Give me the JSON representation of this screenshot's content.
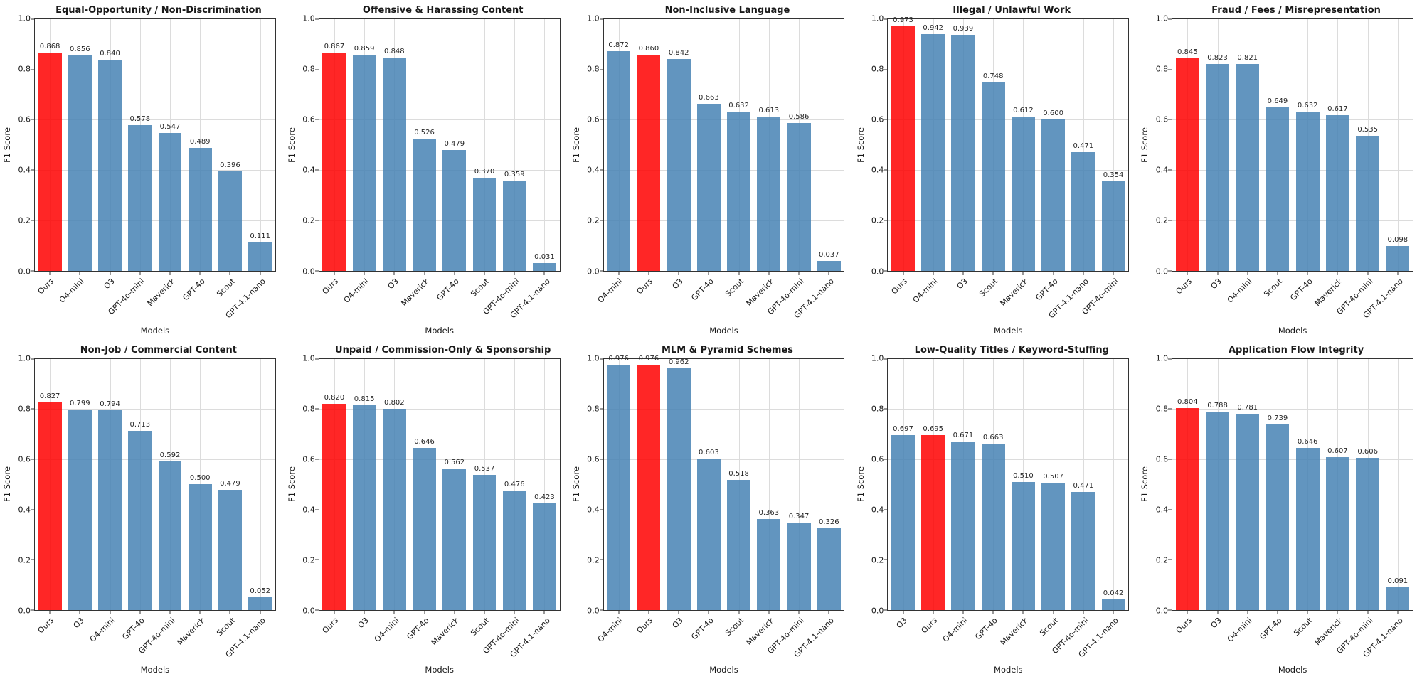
{
  "highlight_model": "Ours",
  "colors": {
    "bar_blue": "rgba(70,130,180,0.85)",
    "bar_highlight_red": "rgba(255,0,0,0.85)",
    "grid": "#dcdcdc",
    "axis": "#333333"
  },
  "chart_data": [
    {
      "type": "bar",
      "title": "Equal-Opportunity / Non-Discrimination",
      "xlabel": "Models",
      "ylabel": "F1 Score",
      "ylim": [
        0.0,
        1.0
      ],
      "yticks": [
        "0.0",
        "0.2",
        "0.4",
        "0.6",
        "0.8",
        "1.0"
      ],
      "grid": true,
      "categories": [
        "Ours",
        "O4-mini",
        "O3",
        "GPT-4o-mini",
        "Maverick",
        "GPT-4o",
        "Scout",
        "GPT-4.1-nano"
      ],
      "values": [
        0.868,
        0.856,
        0.84,
        0.578,
        0.547,
        0.489,
        0.396,
        0.111
      ]
    },
    {
      "type": "bar",
      "title": "Offensive & Harassing Content",
      "xlabel": "Models",
      "ylabel": "F1 Score",
      "ylim": [
        0.0,
        1.0
      ],
      "yticks": [
        "0.0",
        "0.2",
        "0.4",
        "0.6",
        "0.8",
        "1.0"
      ],
      "grid": true,
      "categories": [
        "Ours",
        "O4-mini",
        "O3",
        "Maverick",
        "GPT-4o",
        "Scout",
        "GPT-4o-mini",
        "GPT-4.1-nano"
      ],
      "values": [
        0.867,
        0.859,
        0.848,
        0.526,
        0.479,
        0.37,
        0.359,
        0.031
      ]
    },
    {
      "type": "bar",
      "title": "Non-Inclusive Language",
      "xlabel": "Models",
      "ylabel": "F1 Score",
      "ylim": [
        0.0,
        1.0
      ],
      "yticks": [
        "0.0",
        "0.2",
        "0.4",
        "0.6",
        "0.8",
        "1.0"
      ],
      "grid": true,
      "categories": [
        "O4-mini",
        "Ours",
        "O3",
        "GPT-4o",
        "Scout",
        "Maverick",
        "GPT-4o-mini",
        "GPT-4.1-nano"
      ],
      "values": [
        0.872,
        0.86,
        0.842,
        0.663,
        0.632,
        0.613,
        0.586,
        0.037
      ]
    },
    {
      "type": "bar",
      "title": "Illegal / Unlawful Work",
      "xlabel": "Models",
      "ylabel": "F1 Score",
      "ylim": [
        0.0,
        1.0
      ],
      "yticks": [
        "0.0",
        "0.2",
        "0.4",
        "0.6",
        "0.8",
        "1.0"
      ],
      "grid": true,
      "categories": [
        "Ours",
        "O4-mini",
        "O3",
        "Scout",
        "Maverick",
        "GPT-4o",
        "GPT-4.1-nano",
        "GPT-4o-mini"
      ],
      "values": [
        0.973,
        0.942,
        0.939,
        0.748,
        0.612,
        0.6,
        0.471,
        0.354
      ]
    },
    {
      "type": "bar",
      "title": "Fraud / Fees / Misrepresentation",
      "xlabel": "Models",
      "ylabel": "F1 Score",
      "ylim": [
        0.0,
        1.0
      ],
      "yticks": [
        "0.0",
        "0.2",
        "0.4",
        "0.6",
        "0.8",
        "1.0"
      ],
      "grid": true,
      "categories": [
        "Ours",
        "O3",
        "O4-mini",
        "Scout",
        "GPT-4o",
        "Maverick",
        "GPT-4o-mini",
        "GPT-4.1-nano"
      ],
      "values": [
        0.845,
        0.823,
        0.821,
        0.649,
        0.632,
        0.617,
        0.535,
        0.098
      ]
    },
    {
      "type": "bar",
      "title": "Non-Job / Commercial Content",
      "xlabel": "Models",
      "ylabel": "F1 Score",
      "ylim": [
        0.0,
        1.0
      ],
      "yticks": [
        "0.0",
        "0.2",
        "0.4",
        "0.6",
        "0.8",
        "1.0"
      ],
      "grid": true,
      "categories": [
        "Ours",
        "O3",
        "O4-mini",
        "GPT-4o",
        "GPT-4o-mini",
        "Maverick",
        "Scout",
        "GPT-4.1-nano"
      ],
      "values": [
        0.827,
        0.799,
        0.794,
        0.713,
        0.592,
        0.5,
        0.479,
        0.052
      ]
    },
    {
      "type": "bar",
      "title": "Unpaid / Commission-Only & Sponsorship",
      "xlabel": "Models",
      "ylabel": "F1 Score",
      "ylim": [
        0.0,
        1.0
      ],
      "yticks": [
        "0.0",
        "0.2",
        "0.4",
        "0.6",
        "0.8",
        "1.0"
      ],
      "grid": true,
      "categories": [
        "Ours",
        "O3",
        "O4-mini",
        "GPT-4o",
        "Maverick",
        "Scout",
        "GPT-4o-mini",
        "GPT-4.1-nano"
      ],
      "values": [
        0.82,
        0.815,
        0.802,
        0.646,
        0.562,
        0.537,
        0.476,
        0.423
      ]
    },
    {
      "type": "bar",
      "title": "MLM & Pyramid Schemes",
      "xlabel": "Models",
      "ylabel": "F1 Score",
      "ylim": [
        0.0,
        1.0
      ],
      "yticks": [
        "0.0",
        "0.2",
        "0.4",
        "0.6",
        "0.8",
        "1.0"
      ],
      "grid": true,
      "categories": [
        "O4-mini",
        "Ours",
        "O3",
        "GPT-4o",
        "Scout",
        "Maverick",
        "GPT-4o-mini",
        "GPT-4.1-nano"
      ],
      "values": [
        0.976,
        0.976,
        0.962,
        0.603,
        0.518,
        0.363,
        0.347,
        0.326
      ]
    },
    {
      "type": "bar",
      "title": "Low-Quality Titles / Keyword-Stuffing",
      "xlabel": "Models",
      "ylabel": "F1 Score",
      "ylim": [
        0.0,
        1.0
      ],
      "yticks": [
        "0.0",
        "0.2",
        "0.4",
        "0.6",
        "0.8",
        "1.0"
      ],
      "grid": true,
      "categories": [
        "O3",
        "Ours",
        "O4-mini",
        "GPT-4o",
        "Maverick",
        "Scout",
        "GPT-4o-mini",
        "GPT-4.1-nano"
      ],
      "values": [
        0.697,
        0.695,
        0.671,
        0.663,
        0.51,
        0.507,
        0.471,
        0.042
      ]
    },
    {
      "type": "bar",
      "title": "Application Flow Integrity",
      "xlabel": "Models",
      "ylabel": "F1 Score",
      "ylim": [
        0.0,
        1.0
      ],
      "yticks": [
        "0.0",
        "0.2",
        "0.4",
        "0.6",
        "0.8",
        "1.0"
      ],
      "grid": true,
      "categories": [
        "Ours",
        "O3",
        "O4-mini",
        "GPT-4o",
        "Scout",
        "Maverick",
        "GPT-4o-mini",
        "GPT-4.1-nano"
      ],
      "values": [
        0.804,
        0.788,
        0.781,
        0.739,
        0.646,
        0.607,
        0.606,
        0.091
      ]
    }
  ]
}
